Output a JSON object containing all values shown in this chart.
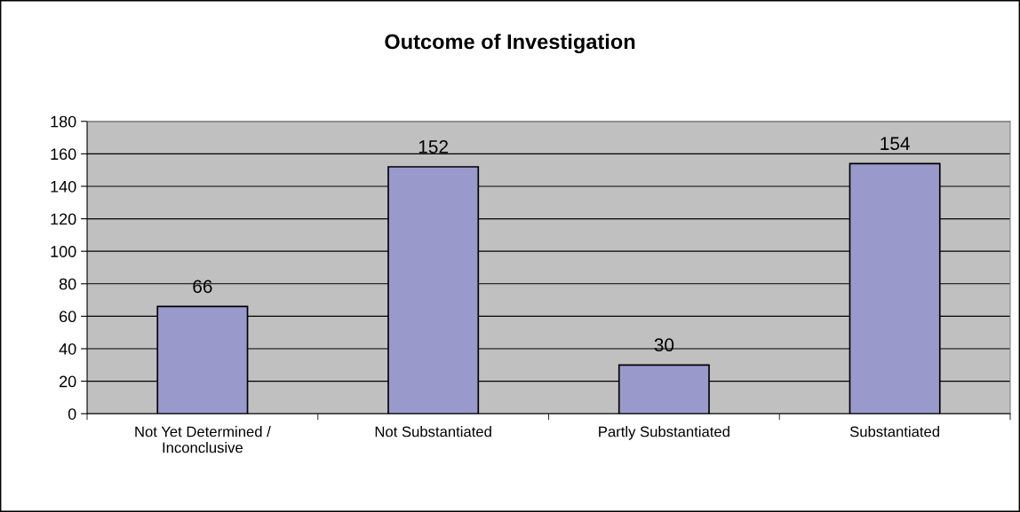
{
  "chart_data": {
    "type": "bar",
    "title": "Outcome of Investigation",
    "categories": [
      "Not Yet Determined /\nInconclusive",
      "Not Substantiated",
      "Partly Substantiated",
      "Substantiated"
    ],
    "values": [
      66,
      152,
      30,
      154
    ],
    "color": "#9999cc",
    "ylim": [
      0,
      180
    ],
    "yticks": [
      0,
      20,
      40,
      60,
      80,
      100,
      120,
      140,
      160,
      180
    ],
    "grid": "y",
    "data_labels": true
  }
}
